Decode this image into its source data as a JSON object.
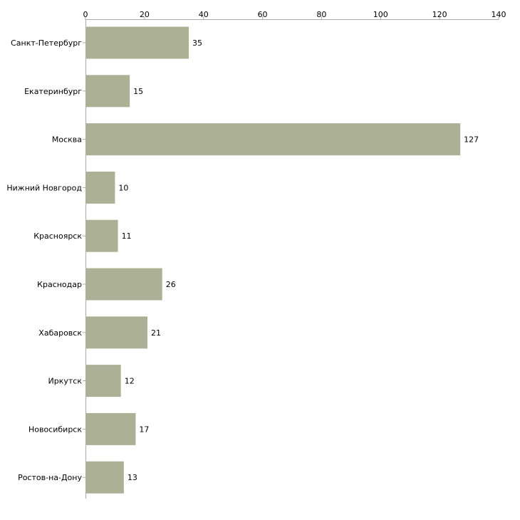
{
  "chart_data": {
    "type": "bar",
    "orientation": "horizontal",
    "categories": [
      "Санкт-Петербург",
      "Екатеринбург",
      "Москва",
      "Нижний Новгород",
      "Красноярск",
      "Краснодар",
      "Хабаровск",
      "Иркутск",
      "Новосибирск",
      "Ростов-на-Дону"
    ],
    "values": [
      35,
      15,
      127,
      10,
      11,
      26,
      21,
      12,
      17,
      13
    ],
    "xlim": [
      0,
      140
    ],
    "xticks": [
      0,
      20,
      40,
      60,
      80,
      100,
      120,
      140
    ],
    "axis_position": "top",
    "title": "",
    "xlabel": "",
    "ylabel": "",
    "grid": false,
    "legend": false
  },
  "colors": {
    "bar": "#acb196",
    "axis": "#aaaaaa",
    "text": "#000000"
  }
}
